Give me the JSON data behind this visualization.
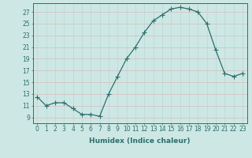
{
  "x": [
    0,
    1,
    2,
    3,
    4,
    5,
    6,
    7,
    8,
    9,
    10,
    11,
    12,
    13,
    14,
    15,
    16,
    17,
    18,
    19,
    20,
    21,
    22,
    23
  ],
  "y": [
    12.5,
    11.0,
    11.5,
    11.5,
    10.5,
    9.5,
    9.5,
    9.2,
    13.0,
    16.0,
    19.0,
    21.0,
    23.5,
    25.5,
    26.5,
    27.5,
    27.8,
    27.5,
    27.0,
    25.0,
    20.5,
    16.5,
    16.0,
    16.5
  ],
  "line_color": "#2d6e6e",
  "marker": "+",
  "marker_size": 4,
  "bg_color": "#cde8e4",
  "grid_color": "#b8d8d4",
  "grid_color2": "#d8b8b8",
  "xlabel": "Humidex (Indice chaleur)",
  "yticks": [
    9,
    11,
    13,
    15,
    17,
    19,
    21,
    23,
    25,
    27
  ],
  "xticks": [
    0,
    1,
    2,
    3,
    4,
    5,
    6,
    7,
    8,
    9,
    10,
    11,
    12,
    13,
    14,
    15,
    16,
    17,
    18,
    19,
    20,
    21,
    22,
    23
  ],
  "ylim": [
    8.0,
    28.5
  ],
  "xlim": [
    -0.5,
    23.5
  ],
  "xlabel_fontsize": 6.5,
  "tick_fontsize": 5.5,
  "tick_color": "#2d6e6e",
  "lw": 0.9
}
